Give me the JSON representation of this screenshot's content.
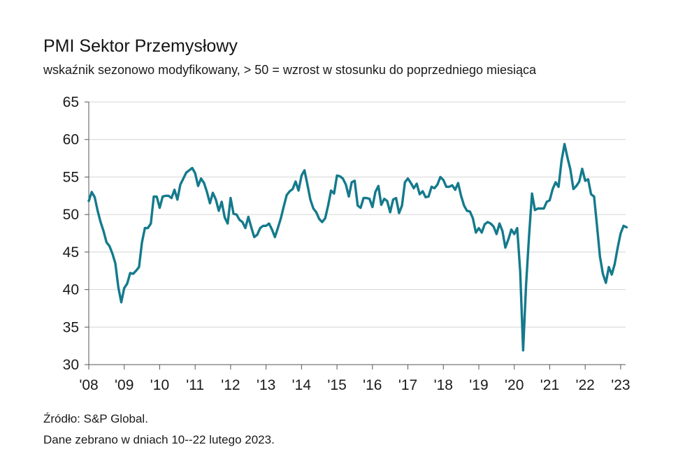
{
  "chart_data": {
    "type": "line",
    "title": "PMI Sektor Przemysłowy",
    "subtitle": "wskaźnik sezonowo modyfikowany, > 50 = wzrost w stosunku do poprzedniego miesiąca",
    "xlabel": "",
    "ylabel": "",
    "ylim": [
      30,
      65
    ],
    "yticks": [
      30,
      35,
      40,
      45,
      50,
      55,
      60,
      65
    ],
    "xticks": [
      "'08",
      "'09",
      "'10",
      "'11",
      "'12",
      "'13",
      "'14",
      "'15",
      "'16",
      "'17",
      "'18",
      "'19",
      "'20",
      "'21",
      "'22",
      "'23"
    ],
    "x_start": "2008-01",
    "grid": true,
    "color": "#147a8c",
    "series": [
      {
        "name": "PMI Sektor Przemysłowy",
        "values": [
          51.8,
          53.0,
          52.3,
          50.5,
          49.0,
          47.8,
          46.3,
          45.8,
          44.8,
          43.5,
          40.3,
          38.3,
          40.2,
          40.8,
          42.2,
          42.1,
          42.5,
          43.0,
          46.3,
          48.2,
          48.2,
          48.8,
          52.4,
          52.4,
          50.9,
          52.4,
          52.5,
          52.5,
          52.2,
          53.3,
          52.0,
          54.0,
          54.8,
          55.6,
          55.9,
          56.2,
          55.5,
          53.8,
          54.8,
          54.2,
          53.0,
          51.5,
          52.9,
          52.0,
          50.5,
          51.7,
          49.6,
          48.8,
          52.2,
          50.1,
          50.0,
          49.3,
          49.0,
          48.2,
          49.7,
          48.3,
          47.0,
          47.3,
          48.2,
          48.5,
          48.5,
          48.8,
          48.0,
          47.0,
          48.2,
          49.5,
          51.1,
          52.6,
          53.1,
          53.4,
          54.4,
          53.2,
          55.2,
          55.9,
          54.0,
          52.0,
          50.8,
          50.3,
          49.4,
          49.0,
          49.5,
          51.2,
          53.2,
          52.8,
          55.2,
          55.1,
          54.8,
          54.0,
          52.4,
          54.3,
          54.5,
          51.2,
          50.9,
          52.2,
          52.2,
          52.1,
          51.0,
          53.0,
          53.8,
          51.3,
          52.1,
          51.8,
          50.3,
          52.0,
          52.2,
          50.2,
          51.2,
          54.3,
          54.8,
          54.2,
          53.5,
          54.1,
          52.7,
          53.1,
          52.3,
          52.4,
          53.7,
          53.5,
          54.0,
          55.0,
          54.6,
          53.7,
          53.7,
          53.9,
          53.3,
          54.2,
          52.5,
          51.2,
          50.5,
          50.4,
          49.5,
          47.6,
          48.2,
          47.6,
          48.7,
          49.0,
          48.8,
          48.4,
          47.4,
          48.8,
          47.8,
          45.6,
          46.7,
          48.0,
          47.4,
          48.2,
          42.4,
          31.9,
          40.6,
          47.2,
          52.8,
          50.6,
          50.8,
          50.8,
          50.8,
          51.7,
          51.9,
          53.4,
          54.3,
          53.7,
          57.2,
          59.4,
          57.6,
          56.0,
          53.4,
          53.8,
          54.4,
          56.1,
          54.5,
          54.7,
          52.7,
          52.4,
          48.5,
          44.4,
          42.1,
          40.9,
          43.0,
          42.0,
          43.4,
          45.6,
          47.5,
          48.5,
          48.3
        ]
      }
    ]
  },
  "footer": {
    "source": "Źródło: S&P Global.",
    "dates": "Dane zebrano w dniach 10--22 lutego  2023."
  }
}
